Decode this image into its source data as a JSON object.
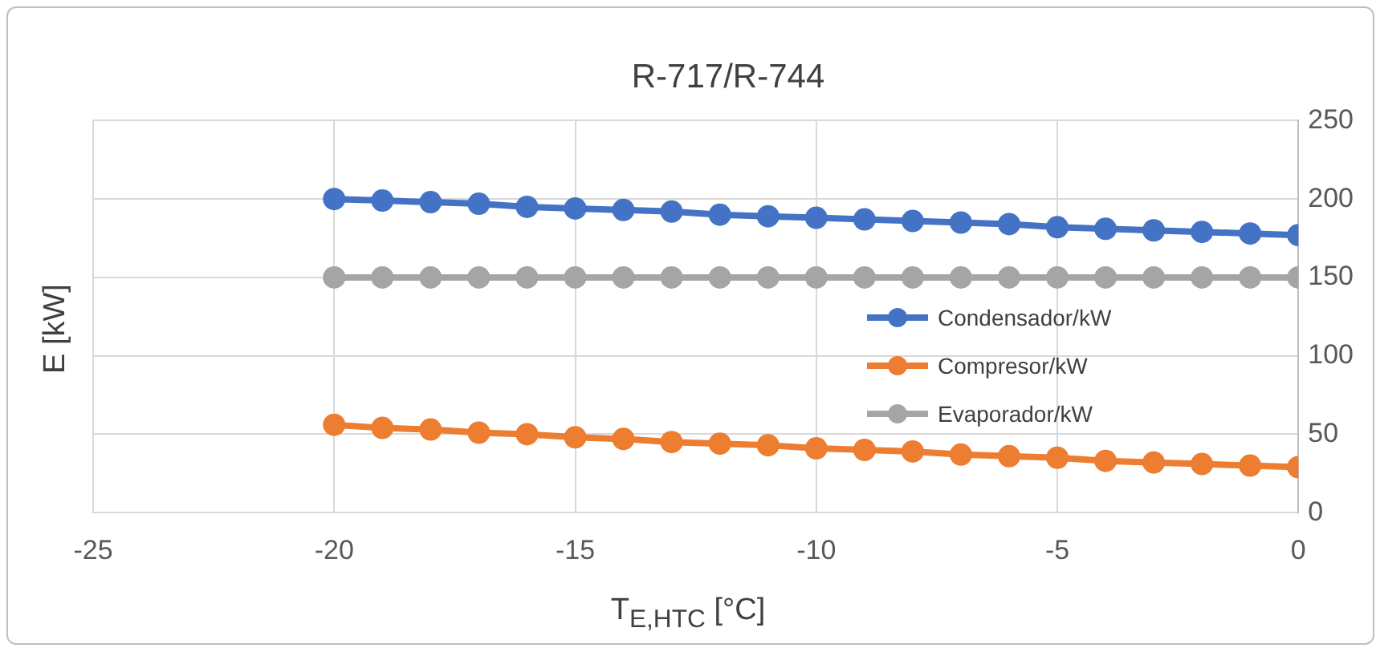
{
  "chart_data": {
    "type": "line",
    "title": "R-717/R-744",
    "xlabel": "T$_{E,HTC}$ [°C]",
    "ylabel": "E [kW]",
    "x": [
      -20,
      -19,
      -18,
      -17,
      -16,
      -15,
      -14,
      -13,
      -12,
      -11,
      -10,
      -9,
      -8,
      -7,
      -6,
      -5,
      -4,
      -3,
      -2,
      -1,
      0
    ],
    "series": [
      {
        "name": "Condensador/kW",
        "color": "#4472c4",
        "values": [
          200,
          199,
          198,
          197,
          195,
          194,
          193,
          192,
          190,
          189,
          188,
          187,
          186,
          185,
          184,
          182,
          181,
          180,
          179,
          178,
          177
        ]
      },
      {
        "name": "Compresor/kW",
        "color": "#ed7d31",
        "values": [
          56,
          54,
          53,
          51,
          50,
          48,
          47,
          45,
          44,
          43,
          41,
          40,
          39,
          37,
          36,
          35,
          33,
          32,
          31,
          30,
          29
        ]
      },
      {
        "name": "Evaporador/kW",
        "color": "#a5a5a5",
        "values": [
          150,
          150,
          150,
          150,
          150,
          150,
          150,
          150,
          150,
          150,
          150,
          150,
          150,
          150,
          150,
          150,
          150,
          150,
          150,
          150,
          150
        ]
      }
    ],
    "xlim": [
      -25,
      0
    ],
    "xticks": [
      -25,
      -20,
      -15,
      -10,
      -5,
      0
    ],
    "ylim": [
      0,
      250
    ],
    "yticks": [
      0,
      50,
      100,
      150,
      200,
      250
    ],
    "grid": true,
    "legend": "right",
    "marker": "circle",
    "line_style": "solid"
  }
}
